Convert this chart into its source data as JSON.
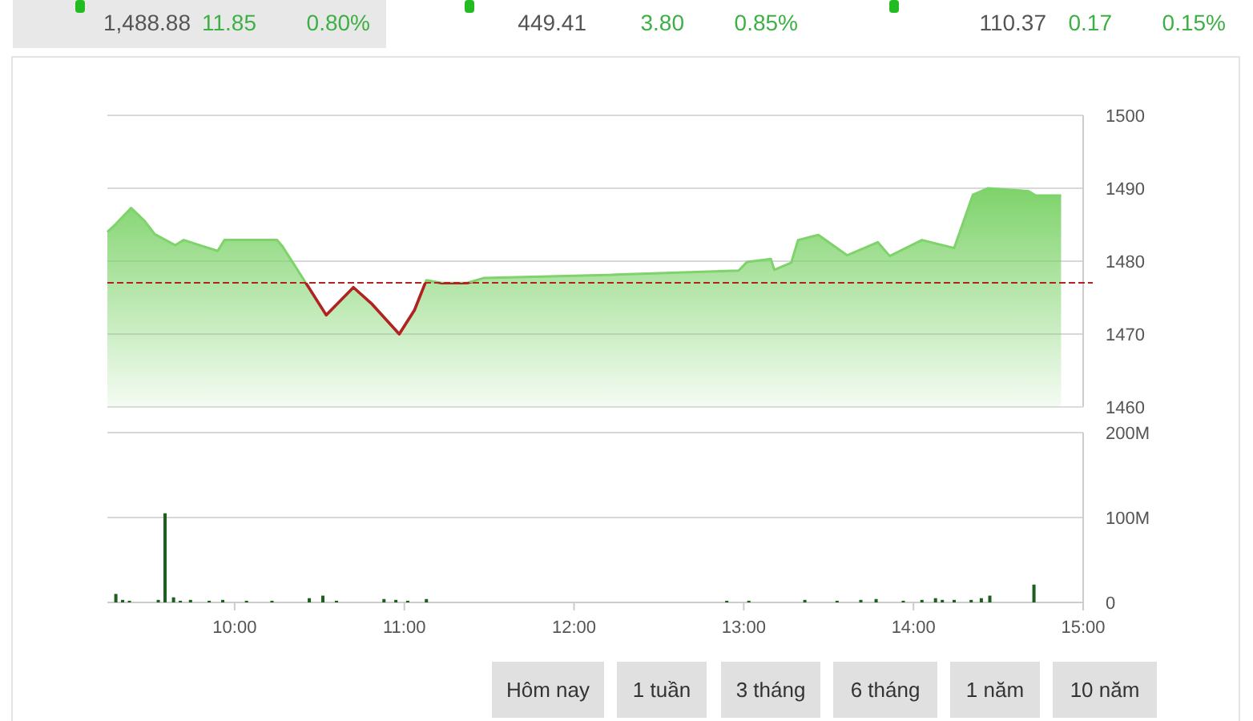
{
  "chart_data": [
    {
      "type": "other",
      "annotations": [
        "1,488.88",
        "11.85",
        "0.80%",
        "449.41",
        "3.80",
        "0.85%",
        "110.37",
        "0.17",
        "0.15%"
      ]
    },
    {
      "type": "area",
      "color": "#7ed36b",
      "xlim": [
        9.25,
        15
      ],
      "ylim": [
        1460,
        1500
      ],
      "yticks": [
        1460,
        1470,
        1480,
        1490,
        1500
      ],
      "grid": "y",
      "tick_labels": "y",
      "ref_lines": [
        {
          "axis": "y",
          "value": 1477.03,
          "color": "#b22222",
          "line_style": "dashed"
        }
      ],
      "x": [
        9.25,
        9.3,
        9.39,
        9.47,
        9.53,
        9.65,
        9.7,
        9.9,
        9.94,
        10.25,
        10.28,
        10.42,
        10.54,
        10.7,
        10.81,
        10.97,
        11.06,
        11.13,
        11.22,
        11.37,
        11.47,
        12.19,
        12.97,
        13.02,
        13.16,
        13.18,
        13.28,
        13.32,
        13.44,
        13.61,
        13.79,
        13.86,
        14.05,
        14.24,
        14.35,
        14.44,
        14.68,
        14.72,
        14.87
      ],
      "values": [
        1484,
        1485.1,
        1487.3,
        1485.5,
        1483.7,
        1482.2,
        1482.9,
        1481.4,
        1482.9,
        1482.9,
        1482.1,
        1477.0,
        1472.6,
        1476.4,
        1474.1,
        1470.0,
        1473.3,
        1477.4,
        1477.0,
        1477.0,
        1477.7,
        1478.1,
        1478.7,
        1479.9,
        1480.3,
        1478.8,
        1479.8,
        1482.9,
        1483.6,
        1480.8,
        1482.6,
        1480.7,
        1482.9,
        1481.8,
        1489.1,
        1490.0,
        1489.6,
        1489.0,
        1489.0
      ]
    },
    {
      "type": "bar",
      "color": "#1e5e1e",
      "xlim": [
        9.25,
        15
      ],
      "ylim": [
        0,
        200
      ],
      "grid": "y",
      "xticks": [
        {
          "value": 10,
          "label": "10:00"
        },
        {
          "value": 11,
          "label": "11:00"
        },
        {
          "value": 12,
          "label": "12:00"
        },
        {
          "value": 13,
          "label": "13:00"
        },
        {
          "value": 14,
          "label": "14:00"
        },
        {
          "value": 15,
          "label": "15:00"
        }
      ],
      "yticks": [
        {
          "value": 0,
          "label": "0"
        },
        {
          "value": 100,
          "label": "100M"
        },
        {
          "value": 200,
          "label": "200M"
        }
      ],
      "x": [
        9.3,
        9.34,
        9.38,
        9.55,
        9.59,
        9.64,
        9.68,
        9.74,
        9.85,
        9.93,
        10.07,
        10.22,
        10.44,
        10.52,
        10.6,
        10.88,
        10.95,
        11.02,
        11.13,
        12.9,
        13.03,
        13.36,
        13.55,
        13.69,
        13.78,
        13.94,
        14.05,
        14.13,
        14.17,
        14.24,
        14.34,
        14.4,
        14.45,
        14.71
      ],
      "values": [
        10,
        3,
        2,
        3,
        105,
        6,
        2,
        3,
        2,
        3,
        2,
        2,
        5,
        8,
        2,
        4,
        3,
        2,
        4,
        2,
        2,
        3,
        2,
        3,
        4,
        2,
        3,
        5,
        3,
        3,
        3,
        5,
        8,
        21
      ]
    },
    {
      "type": "other",
      "annotations": [
        "Hôm nay",
        "1 tuần",
        "3 tháng",
        "6 tháng",
        "1 năm",
        "10 năm"
      ]
    }
  ]
}
